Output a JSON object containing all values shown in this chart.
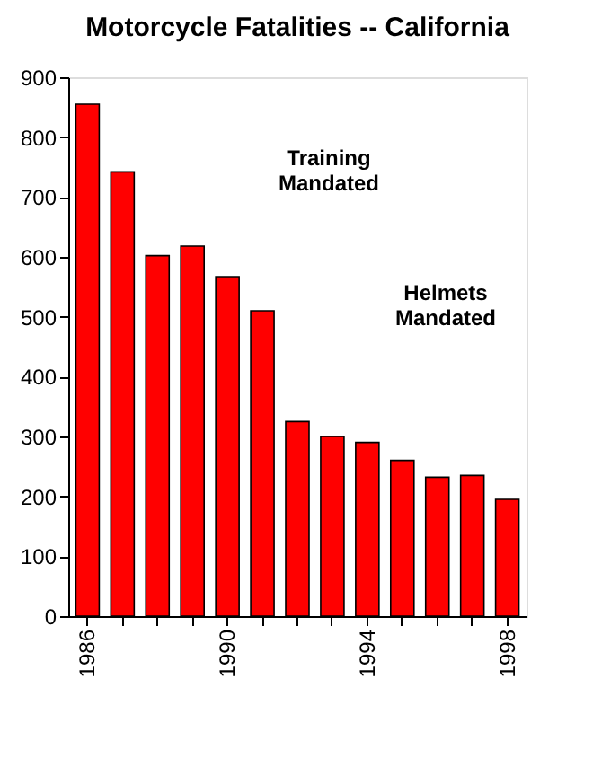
{
  "chart_data": {
    "type": "bar",
    "title": "Motorcycle Fatalities -- California",
    "categories": [
      "1986",
      null,
      null,
      null,
      "1990",
      null,
      null,
      null,
      "1994",
      null,
      null,
      null,
      "1998"
    ],
    "values": [
      855,
      742,
      602,
      618,
      567,
      510,
      325,
      300,
      290,
      260,
      232,
      235,
      195
    ],
    "color": "#ff0000",
    "ylim": [
      0,
      900
    ],
    "yticks": [
      0,
      100,
      200,
      300,
      400,
      500,
      600,
      700,
      800,
      900
    ],
    "grid": false,
    "annotations": [
      "Training Mandated",
      "Helmets Mandated"
    ]
  }
}
